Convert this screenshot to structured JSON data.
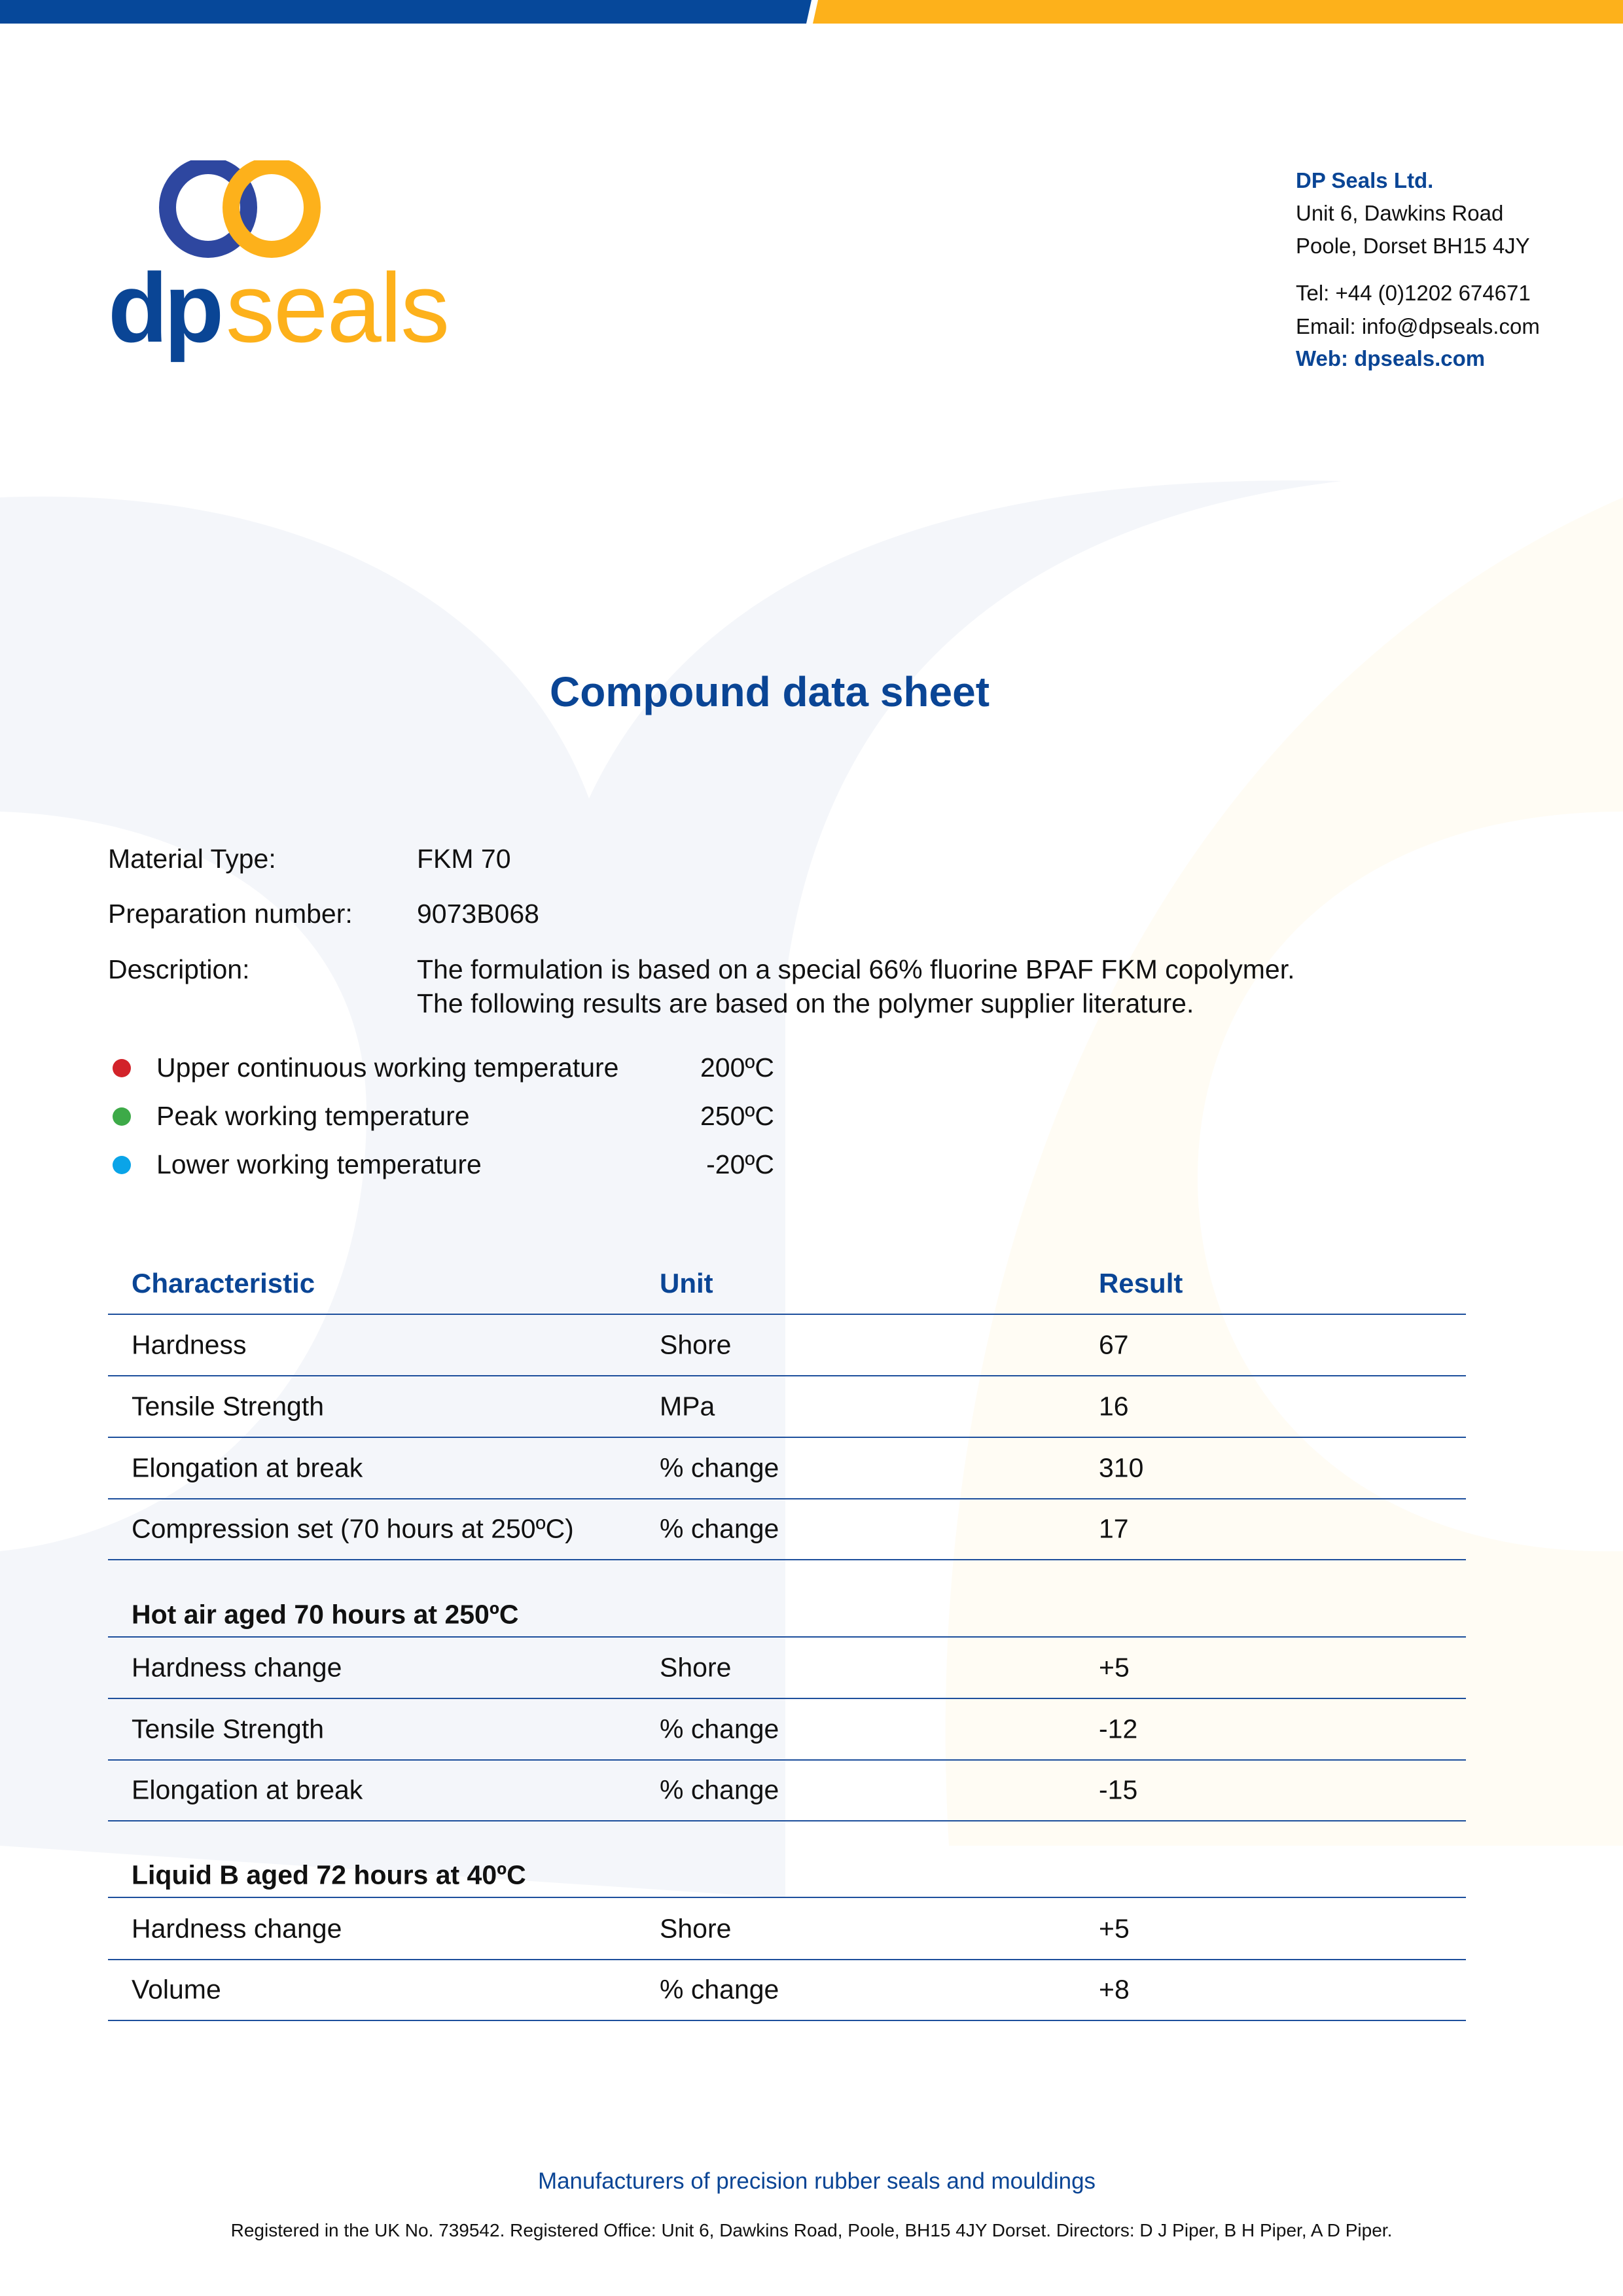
{
  "colors": {
    "brand_blue": "#0a4595",
    "brand_yellow": "#fdb11b",
    "bullet_red": "#d2232a",
    "bullet_green": "#3daa48",
    "bullet_blue": "#0aa4e8"
  },
  "logo": {
    "text_dp": "dp",
    "text_seals": "seals"
  },
  "company": {
    "name": "DP Seals Ltd.",
    "address1": "Unit 6, Dawkins Road",
    "address2": "Poole, Dorset BH15 4JY",
    "tel": "Tel: +44 (0)1202 674671",
    "email": "Email: info@dpseals.com",
    "web": "Web: dpseals.com"
  },
  "title": "Compound data sheet",
  "info": [
    {
      "label": "Material Type:",
      "value": "FKM 70"
    },
    {
      "label": "Preparation number:",
      "value": "9073B068"
    },
    {
      "label": "Description:",
      "value": "The formulation is based on a special 66% fluorine BPAF FKM copolymer.",
      "value2": "The following results are based on the polymer supplier literature."
    }
  ],
  "temperatures": [
    {
      "label": "Upper continuous working temperature",
      "value": "200ºC",
      "color": "red"
    },
    {
      "label": "Peak working temperature",
      "value": "250ºC",
      "color": "green"
    },
    {
      "label": "Lower working temperature",
      "value": "-20ºC",
      "color": "blue"
    }
  ],
  "table": {
    "headers": [
      "Characteristic",
      "Unit",
      "Result"
    ],
    "rows": [
      [
        "Hardness",
        "Shore",
        "67"
      ],
      [
        "Tensile Strength",
        "MPa",
        "16"
      ],
      [
        "Elongation at break",
        "% change",
        "310"
      ],
      [
        "Compression set (70 hours at 250ºC)",
        "% change",
        "17"
      ]
    ],
    "sections": [
      {
        "title": "Hot air aged 70 hours at 250ºC",
        "rows": [
          [
            "Hardness change",
            "Shore",
            "+5"
          ],
          [
            "Tensile Strength",
            "% change",
            "-12"
          ],
          [
            "Elongation at break",
            "% change",
            "-15"
          ]
        ]
      },
      {
        "title": "Liquid B aged 72 hours at 40ºC",
        "rows": [
          [
            "Hardness change",
            "Shore",
            "+5"
          ],
          [
            "Volume",
            "% change",
            "+8"
          ]
        ]
      }
    ]
  },
  "footer": {
    "tagline": "Manufacturers of precision rubber seals and mouldings",
    "registered": "Registered in the UK No. 739542. Registered Office: Unit 6, Dawkins Road, Poole, BH15 4JY Dorset. Directors: D J Piper, B H Piper, A D Piper."
  }
}
